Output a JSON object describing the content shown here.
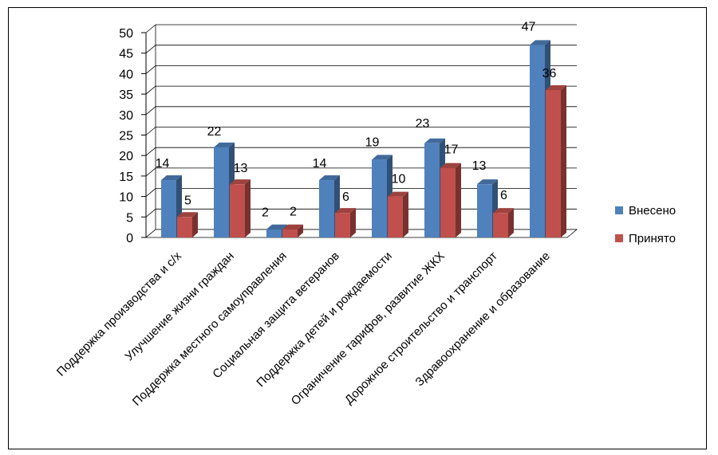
{
  "chart_data": {
    "type": "bar",
    "title": "",
    "xlabel": "",
    "ylabel": "",
    "ylim": [
      0,
      50
    ],
    "yticks": [
      0,
      5,
      10,
      15,
      20,
      25,
      30,
      35,
      40,
      45,
      50
    ],
    "grid": true,
    "legend_position": "right",
    "categories": [
      "Поддержка производства и с/х",
      "Улучшение жизни граждан",
      "Поддержка местного самоуправления",
      "Социальная защита ветеранов",
      "Поддержка детей и рождаемости",
      "Ограничение тарифов, развитие ЖКХ",
      "Дорожное строительство и транспорт",
      "Здравоохранение и образование"
    ],
    "series": [
      {
        "name": "Внесено",
        "color": "#4F81BD",
        "values": [
          14,
          22,
          2,
          14,
          19,
          23,
          13,
          47
        ]
      },
      {
        "name": "Принято",
        "color": "#C0504D",
        "values": [
          5,
          13,
          2,
          6,
          10,
          17,
          6,
          36
        ]
      }
    ]
  }
}
